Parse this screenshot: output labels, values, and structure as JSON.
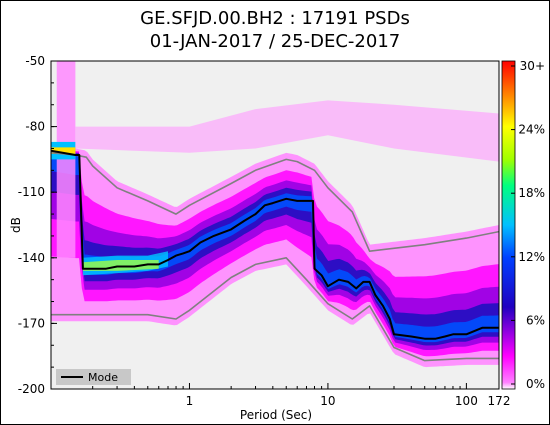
{
  "chart_data": {
    "type": "heatmap",
    "title": "GE.SFJD.00.BH2 : 17191 PSDs",
    "subtitle": "01-JAN-2017 / 25-DEC-2017",
    "xlabel": "Period (Sec)",
    "ylabel": "dB",
    "x_scale": "log",
    "xlim": [
      0.1,
      172
    ],
    "ylim": [
      -200,
      -50
    ],
    "x_ticks": [
      {
        "value": 1,
        "label": "1"
      },
      {
        "value": 10,
        "label": "10"
      },
      {
        "value": 100,
        "label": "100"
      },
      {
        "value": 172,
        "label": "172"
      }
    ],
    "y_ticks": [
      -50,
      -80,
      -110,
      -140,
      -170,
      -200
    ],
    "colorbar": {
      "ticks": [
        "30+",
        "24%",
        "18%",
        "12%",
        "6%",
        "0%"
      ],
      "colors": [
        "#ff0000",
        "#ff8000",
        "#ffff00",
        "#00ff00",
        "#00e0e0",
        "#0000ff",
        "#3000a0",
        "#ff00ff",
        "#ffffff"
      ]
    },
    "legend": {
      "position": "bottom-left",
      "entries": [
        "Mode"
      ]
    },
    "background_color": "#f0f0f0",
    "series": [
      {
        "name": "Mode",
        "color": "#000000",
        "x": [
          0.1,
          0.15,
          0.16,
          0.17,
          0.2,
          0.25,
          0.3,
          0.4,
          0.5,
          0.6,
          0.7,
          0.8,
          0.9,
          1.0,
          1.2,
          1.5,
          2.0,
          2.5,
          3.0,
          3.5,
          4.0,
          5.0,
          6.0,
          7.0,
          7.8,
          8.0,
          9.0,
          10.0,
          12.0,
          14.0,
          16.0,
          18.0,
          20.0,
          22.0,
          25.0,
          28.0,
          30.0,
          40.0,
          50.0,
          60.0,
          70.0,
          80.0,
          100.0,
          130.0,
          172.0
        ],
        "y": [
          -91,
          -93,
          -93,
          -145,
          -145,
          -145,
          -144,
          -144,
          -143,
          -143,
          -141,
          -139,
          -138,
          -137,
          -133,
          -130,
          -127,
          -123,
          -120,
          -116,
          -115,
          -113,
          -114,
          -114,
          -114,
          -145,
          -148,
          -153,
          -150,
          -151,
          -154,
          -151,
          -151,
          -157,
          -162,
          -168,
          -175,
          -176,
          -177,
          -177,
          -176,
          -175,
          -175,
          -172,
          -172
        ]
      },
      {
        "name": "",
        "color": "#808080",
        "x": [
          0.1,
          0.15,
          0.18,
          0.2,
          0.3,
          0.5,
          0.8,
          1.0,
          2.0,
          3.0,
          5.0,
          6.0,
          8.0,
          10.0,
          15.0,
          20.0,
          50.0,
          100.0,
          172.0
        ],
        "y": [
          -92,
          -93,
          -94,
          -98,
          -108,
          -114,
          -120,
          -116,
          -106,
          -100,
          -95,
          -96,
          -100,
          -108,
          -119,
          -137,
          -134,
          -131,
          -128
        ]
      },
      {
        "name": "",
        "color": "#808080",
        "x": [
          0.1,
          0.2,
          0.5,
          0.8,
          1.0,
          2.0,
          3.0,
          5.0,
          7.0,
          10.0,
          15.0,
          20.0,
          30.0,
          50.0,
          100.0,
          172.0
        ],
        "y": [
          -166,
          -166,
          -166,
          -168,
          -164,
          -149,
          -143,
          -140,
          -150,
          -161,
          -168,
          -162,
          -181,
          -187,
          -186,
          -186
        ]
      }
    ]
  }
}
